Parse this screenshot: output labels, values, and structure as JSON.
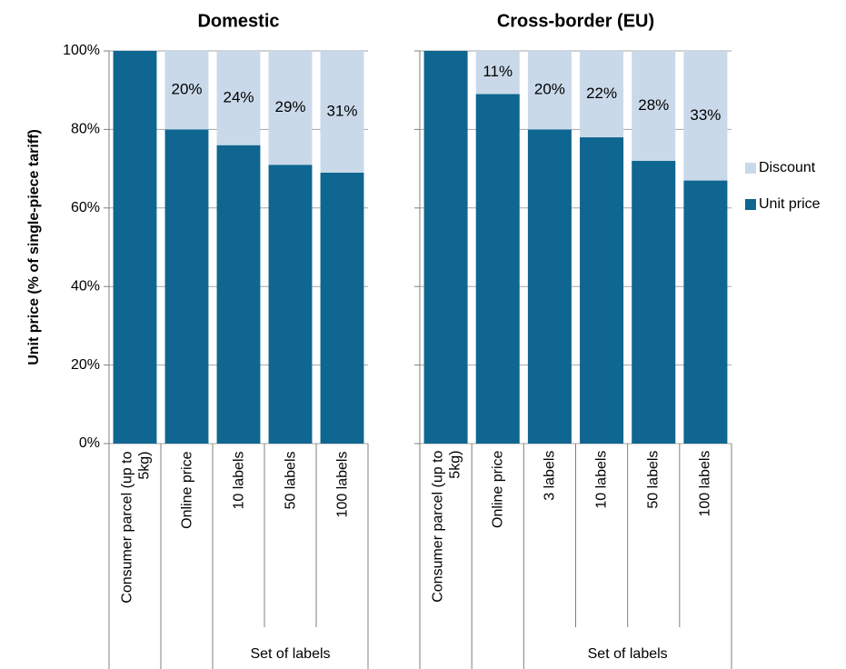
{
  "chart_data": [
    {
      "type": "stacked_bar",
      "title": "Domestic",
      "y_label": "Unit price (% of single-piece tariff)",
      "group_label": "Set of labels",
      "categories": [
        "Consumer parcel (up to 5kg)",
        "Online price",
        "10 labels",
        "50 labels",
        "100 labels"
      ],
      "series": [
        {
          "name": "Unit price",
          "color": "#0f6690",
          "values": [
            100,
            80,
            76,
            71,
            69
          ]
        },
        {
          "name": "Discount",
          "color": "#c9d9ea",
          "values": [
            0,
            20,
            24,
            29,
            31
          ],
          "value_labels": [
            null,
            "20%",
            "24%",
            "29%",
            "31%"
          ]
        }
      ],
      "ylim": [
        0,
        100
      ],
      "yticks": [
        {
          "value": 0,
          "label": "0%"
        },
        {
          "value": 20,
          "label": "20%"
        },
        {
          "value": 40,
          "label": "40%"
        },
        {
          "value": 60,
          "label": "60%"
        },
        {
          "value": 80,
          "label": "80%"
        },
        {
          "value": 100,
          "label": "100%"
        }
      ],
      "grid": true
    },
    {
      "type": "stacked_bar",
      "title": "Cross-border (EU)",
      "group_label": "Set of labels",
      "categories": [
        "Consumer parcel (up to 5kg)",
        "Online price",
        "3 labels",
        "10 labels",
        "50 labels",
        "100 labels"
      ],
      "series": [
        {
          "color": "#0f6690",
          "values": [
            100,
            89,
            80,
            78,
            72,
            67
          ]
        },
        {
          "color": "#c9d9ea",
          "values": [
            0,
            11,
            20,
            22,
            28,
            33
          ],
          "value_labels": [
            null,
            "11%",
            "20%",
            "22%",
            "28%",
            "33%"
          ]
        }
      ],
      "ylim": [
        0,
        100
      ],
      "yticks": [
        0,
        20,
        40,
        60,
        80,
        100
      ],
      "grid": true
    }
  ]
}
